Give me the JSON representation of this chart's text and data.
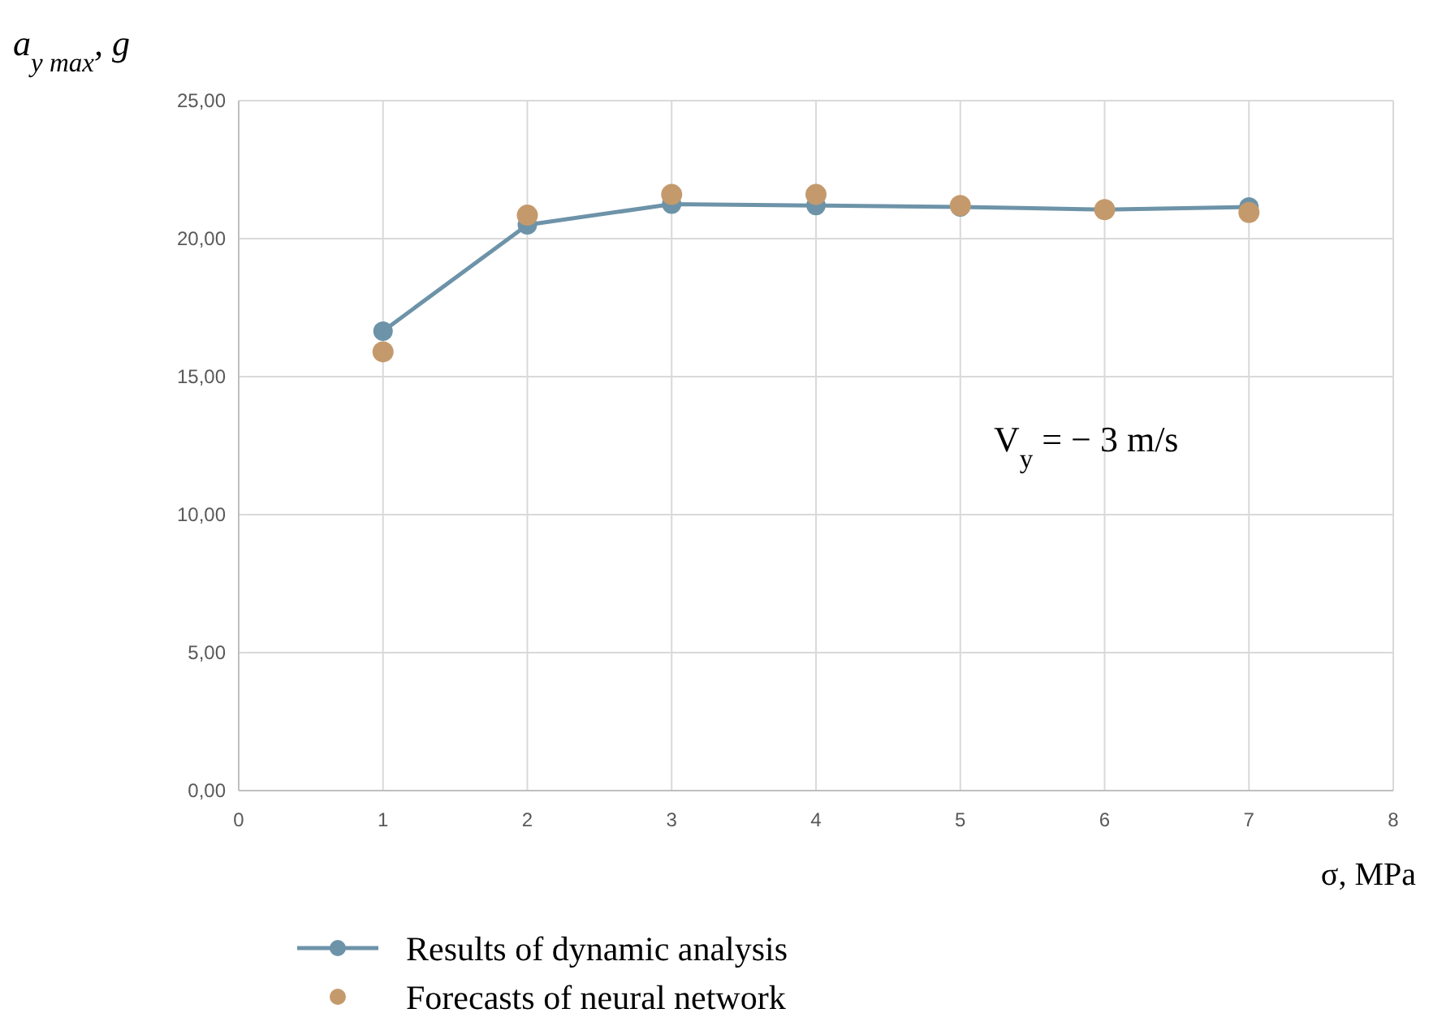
{
  "chart_data": {
    "type": "line",
    "xlabel": "σ, MPa",
    "ylabel": "a$_{y max}$, g",
    "x": [
      1,
      2,
      3,
      4,
      5,
      6,
      7
    ],
    "series": [
      {
        "name": "Results of dynamic analysis",
        "color": "#6d93a8",
        "marker": "circle",
        "values": [
          16.65,
          20.5,
          21.25,
          21.2,
          21.15,
          21.05,
          21.15
        ]
      },
      {
        "name": "Forecasts of neural network",
        "color": "#c49a6c",
        "type": "scatter",
        "marker": "circle",
        "values": [
          15.9,
          20.85,
          21.6,
          21.6,
          21.2,
          21.05,
          20.95
        ]
      }
    ],
    "xlim": [
      0,
      8
    ],
    "xticks": [
      0,
      1,
      2,
      3,
      4,
      5,
      6,
      7,
      8
    ],
    "ylim": [
      0,
      25
    ],
    "yticks": [
      {
        "value": 0,
        "label": "0,00"
      },
      {
        "value": 5,
        "label": "5,00"
      },
      {
        "value": 10,
        "label": "10,00"
      },
      {
        "value": 15,
        "label": "15,00"
      },
      {
        "value": 20,
        "label": "20,00"
      },
      {
        "value": 25,
        "label": "25,00"
      }
    ],
    "annotations": [
      "V$_{y}$ = − 3 m/s"
    ],
    "grid": true,
    "legend": "bottom"
  }
}
